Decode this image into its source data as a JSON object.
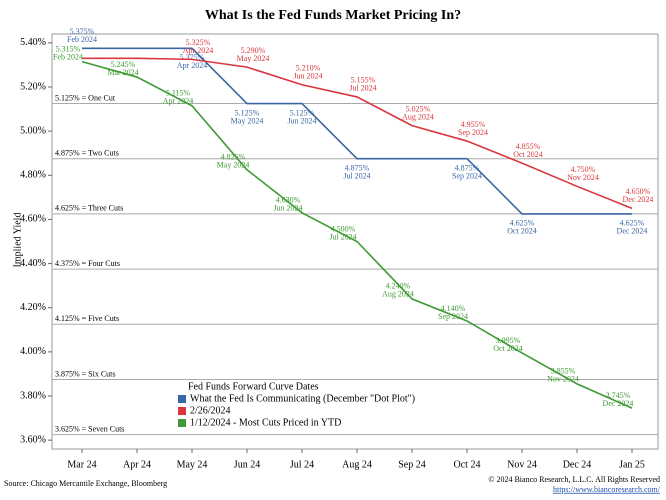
{
  "chart_data": {
    "type": "line",
    "title": "What Is the Fed Funds Market Pricing In?",
    "y_label": "Implied Yield",
    "categories": [
      "Feb 2024",
      "Mar 2024",
      "Apr 2024",
      "May 2024",
      "Jun 2024",
      "Jul 2024",
      "Aug 2024",
      "Sep 2024",
      "Oct 2024",
      "Nov 2024",
      "Dec 2024"
    ],
    "x_axis_labels": [
      "Mar 24",
      "Apr 24",
      "May 24",
      "Jun 24",
      "Jul 24",
      "Aug 24",
      "Sep 24",
      "Oct 24",
      "Nov 24",
      "Dec 24",
      "Jan 25"
    ],
    "ylim": [
      3.56,
      5.44
    ],
    "yticks": [
      {
        "value": 5.4,
        "label": "5.40%"
      },
      {
        "value": 5.2,
        "label": "5.20%"
      },
      {
        "value": 5.0,
        "label": "5.00%"
      },
      {
        "value": 4.8,
        "label": "4.80%"
      },
      {
        "value": 4.6,
        "label": "4.60%"
      },
      {
        "value": 4.4,
        "label": "4.40%"
      },
      {
        "value": 4.2,
        "label": "4.20%"
      },
      {
        "value": 4.0,
        "label": "4.00%"
      },
      {
        "value": 3.8,
        "label": "3.80%"
      },
      {
        "value": 3.6,
        "label": "3.60%"
      }
    ],
    "reference_lines": [
      {
        "value": 5.125,
        "label": "5.125% = One Cut"
      },
      {
        "value": 4.875,
        "label": "4.875% = Two Cuts"
      },
      {
        "value": 4.625,
        "label": "4.625% = Three Cuts"
      },
      {
        "value": 4.375,
        "label": "4.375% = Four Cuts"
      },
      {
        "value": 4.125,
        "label": "4.125% = Five Cuts"
      },
      {
        "value": 3.875,
        "label": "3.875% = Six Cuts"
      },
      {
        "value": 3.625,
        "label": "3.625% = Seven Cuts"
      }
    ],
    "legend_title": "Fed Funds Forward Curve Dates",
    "series": [
      {
        "name": "What the Fed Is Communicating (December \"Dot Plot\")",
        "color": "#3a67a3",
        "values": [
          5.375,
          5.375,
          5.375,
          5.125,
          5.125,
          4.875,
          4.875,
          4.875,
          4.625,
          4.625,
          4.625
        ],
        "value_labels": [
          "5.375%",
          null,
          "5.375%",
          "5.125%",
          "5.125%",
          "4.875%",
          null,
          "4.875%",
          "4.625%",
          null,
          "4.625%"
        ]
      },
      {
        "name": "2/26/2024",
        "color": "#d9373d",
        "values": [
          5.33,
          5.33,
          5.325,
          5.29,
          5.21,
          5.155,
          5.025,
          4.955,
          4.855,
          4.75,
          4.65
        ],
        "value_labels": [
          null,
          null,
          "5.325%",
          "5.290%",
          "5.210%",
          "5.155%",
          "5.025%",
          "4.955%",
          "4.855%",
          "4.750%",
          "4.650%"
        ]
      },
      {
        "name": "1/12/2024 - Most Cuts Priced in YTD",
        "color": "#3f9a34",
        "values": [
          5.315,
          5.245,
          5.115,
          4.825,
          4.63,
          4.5,
          4.24,
          4.14,
          3.995,
          3.855,
          3.745
        ],
        "value_labels": [
          "5.315%",
          "5.245%",
          "5.115%",
          "4.825%",
          "4.630%",
          "4.500%",
          "4.240%",
          "4.140%",
          "3.995%",
          "3.855%",
          "3.745%"
        ]
      }
    ],
    "source": "Source: Chicago Mercantile Exchange, Bloomberg",
    "copyright": "© 2024 Bianco Research, L.L.C. All Rights Reserved",
    "url": "https://www.biancoresearch.com/"
  }
}
